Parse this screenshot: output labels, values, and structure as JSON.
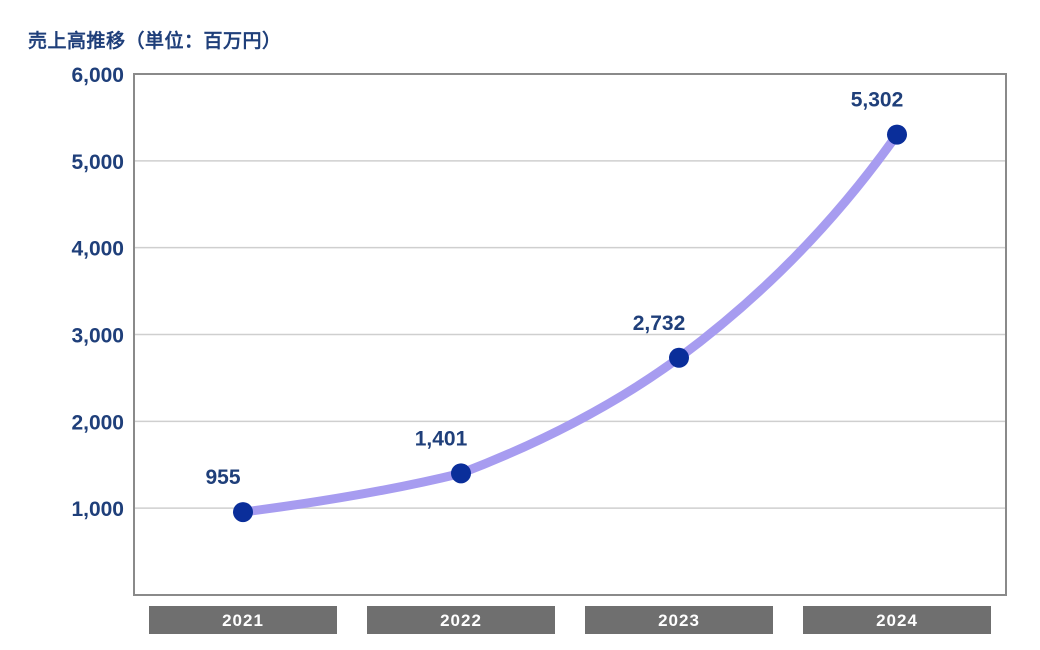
{
  "chart_data": {
    "type": "line",
    "title": "売上高推移（単位：百万円）",
    "categories": [
      "2021",
      "2022",
      "2023",
      "2024"
    ],
    "series": [
      {
        "values": [
          955,
          1401,
          2732,
          5302
        ]
      }
    ],
    "data_labels": [
      "955",
      "1,401",
      "2,732",
      "5,302"
    ],
    "yticks": [
      "1,000",
      "2,000",
      "3,000",
      "4,000",
      "5,000",
      "6,000"
    ],
    "ytick_values": [
      1000,
      2000,
      3000,
      4000,
      5000,
      6000
    ],
    "ylim": [
      0,
      6000
    ],
    "grid": true,
    "colors": {
      "line": "#a79cf0",
      "marker": "#0a2e9a",
      "text": "#1f3f7a",
      "category_box": "#6f6f6f",
      "frame": "#8a8a8a",
      "gridline": "#cfcfcf"
    }
  }
}
